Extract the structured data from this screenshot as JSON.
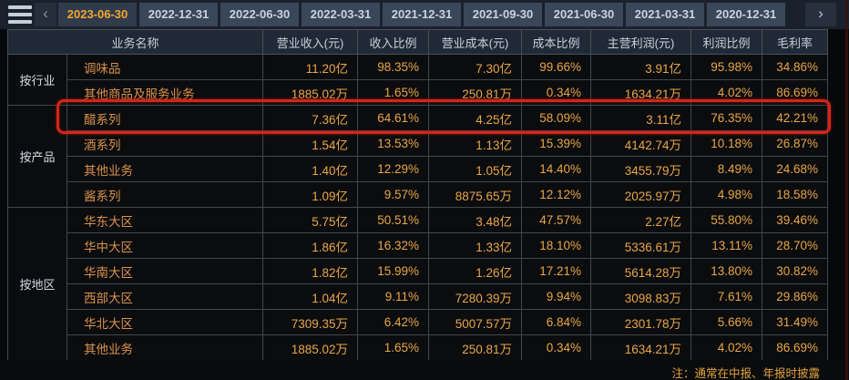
{
  "topbar": {
    "icons": {
      "menu": "menu",
      "prev": "‹",
      "next": "›"
    },
    "tabs": [
      {
        "label": "2023-06-30",
        "active": true
      },
      {
        "label": "2022-12-31",
        "active": false
      },
      {
        "label": "2022-06-30",
        "active": false
      },
      {
        "label": "2022-03-31",
        "active": false
      },
      {
        "label": "2021-12-31",
        "active": false
      },
      {
        "label": "2021-09-30",
        "active": false
      },
      {
        "label": "2021-06-30",
        "active": false
      },
      {
        "label": "2021-03-31",
        "active": false
      },
      {
        "label": "2020-12-31",
        "active": false
      }
    ]
  },
  "table": {
    "headers": [
      "业务名称",
      "营业收入(元)",
      "收入比例",
      "营业成本(元)",
      "成本比例",
      "主营利润(元)",
      "利润比例",
      "毛利率"
    ],
    "groups": [
      {
        "label": "按行业",
        "rows": [
          {
            "name": "调味品",
            "highlighted": false,
            "values": [
              "11.20亿",
              "98.35%",
              "7.30亿",
              "99.66%",
              "3.91亿",
              "95.98%",
              "34.86%"
            ]
          },
          {
            "name": "其他商品及服务业务",
            "highlighted": false,
            "values": [
              "1885.02万",
              "1.65%",
              "250.81万",
              "0.34%",
              "1634.21万",
              "4.02%",
              "86.69%"
            ]
          }
        ]
      },
      {
        "label": "按产品",
        "rows": [
          {
            "name": "醋系列",
            "highlighted": true,
            "values": [
              "7.36亿",
              "64.61%",
              "4.25亿",
              "58.09%",
              "3.11亿",
              "76.35%",
              "42.21%"
            ]
          },
          {
            "name": "酒系列",
            "highlighted": false,
            "values": [
              "1.54亿",
              "13.53%",
              "1.13亿",
              "15.39%",
              "4142.74万",
              "10.18%",
              "26.87%"
            ]
          },
          {
            "name": "其他业务",
            "highlighted": false,
            "values": [
              "1.40亿",
              "12.29%",
              "1.05亿",
              "14.40%",
              "3455.79万",
              "8.49%",
              "24.68%"
            ]
          },
          {
            "name": "酱系列",
            "highlighted": false,
            "values": [
              "1.09亿",
              "9.57%",
              "8875.65万",
              "12.12%",
              "2025.97万",
              "4.98%",
              "18.58%"
            ]
          }
        ]
      },
      {
        "label": "按地区",
        "rows": [
          {
            "name": "华东大区",
            "highlighted": false,
            "values": [
              "5.75亿",
              "50.51%",
              "3.48亿",
              "47.57%",
              "2.27亿",
              "55.80%",
              "39.46%"
            ]
          },
          {
            "name": "华中大区",
            "highlighted": false,
            "values": [
              "1.86亿",
              "16.32%",
              "1.33亿",
              "18.10%",
              "5336.61万",
              "13.11%",
              "28.70%"
            ]
          },
          {
            "name": "华南大区",
            "highlighted": false,
            "values": [
              "1.82亿",
              "15.99%",
              "1.26亿",
              "17.21%",
              "5614.28万",
              "13.80%",
              "30.82%"
            ]
          },
          {
            "name": "西部大区",
            "highlighted": false,
            "values": [
              "1.04亿",
              "9.11%",
              "7280.39万",
              "9.94%",
              "3098.83万",
              "7.61%",
              "29.86%"
            ]
          },
          {
            "name": "华北大区",
            "highlighted": false,
            "values": [
              "7309.35万",
              "6.42%",
              "5007.57万",
              "6.84%",
              "2301.78万",
              "5.66%",
              "31.49%"
            ]
          },
          {
            "name": "其他业务",
            "highlighted": false,
            "values": [
              "1885.02万",
              "1.65%",
              "250.81万",
              "0.34%",
              "1634.21万",
              "4.02%",
              "86.69%"
            ]
          }
        ]
      }
    ]
  },
  "footer": {
    "note": "注：通常在中报、年报时披露"
  },
  "colors": {
    "value_orange": "#e9a648",
    "name_orange": "#d9924d",
    "tab_active_text": "#f4a72c",
    "highlight_red": "#d2261a",
    "topbar_bg": "#1a212c",
    "header_bg": "#202a37",
    "body_bg": "#0b0c0e"
  }
}
